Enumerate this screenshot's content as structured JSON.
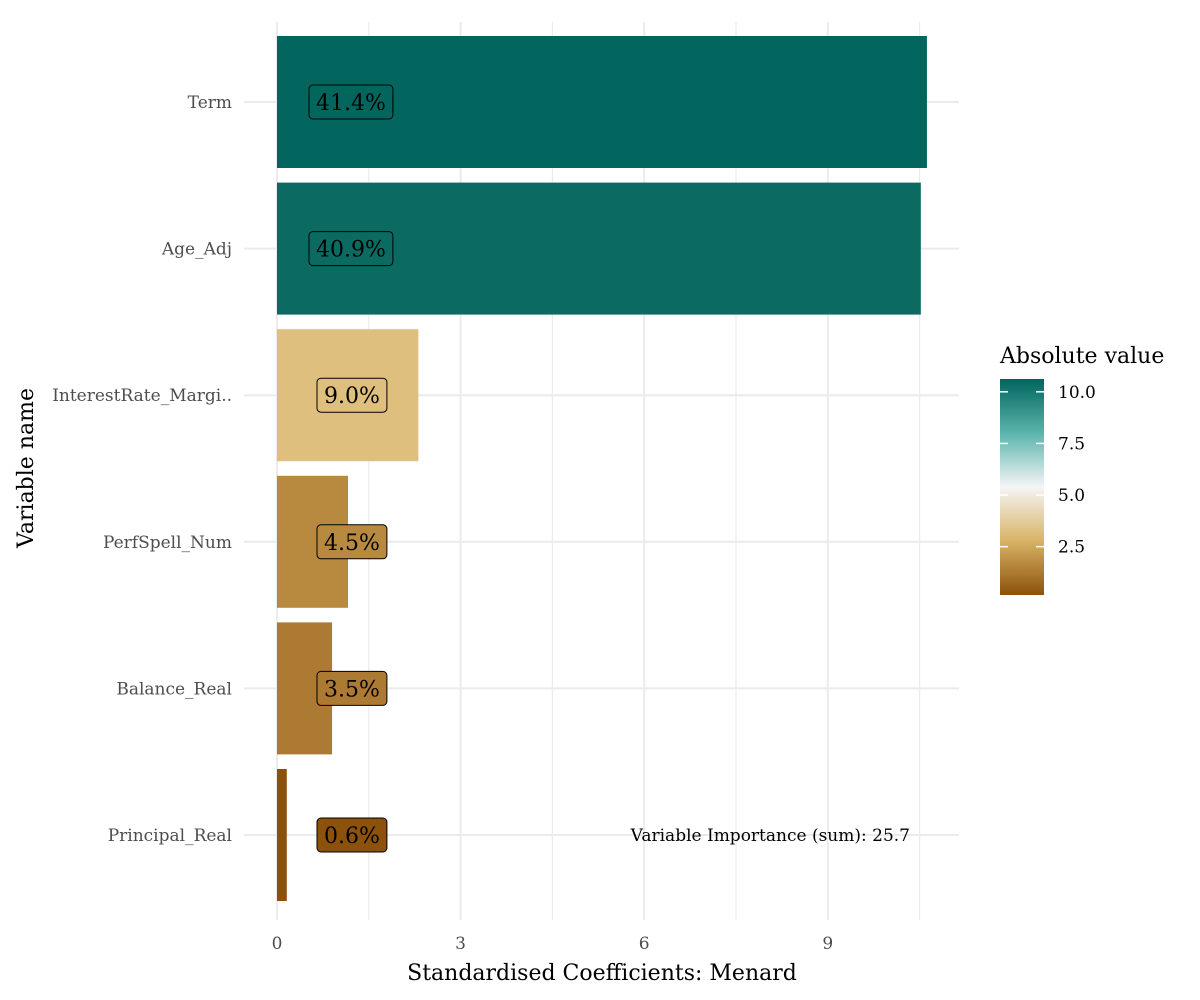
{
  "chart_data": {
    "type": "bar",
    "orientation": "horizontal",
    "xlabel": "Standardised Coefficients: Menard",
    "ylabel": "Variable name",
    "xlim": [
      0,
      11.1
    ],
    "x_ticks": [
      0,
      3,
      6,
      9
    ],
    "x_tick_labels": [
      "0",
      "3",
      "6",
      "9"
    ],
    "grid": true,
    "categories": [
      "Term",
      "Age_Adj",
      "InterestRate_Margi..",
      "PerfSpell_Num",
      "Balance_Real",
      "Principal_Real"
    ],
    "values": [
      10.62,
      10.52,
      2.31,
      1.16,
      0.9,
      0.16
    ],
    "labels": [
      "41.4%",
      "40.9%",
      "9.0%",
      "4.5%",
      "3.5%",
      "0.6%"
    ],
    "colors": [
      "#03665e",
      "#0b6b63",
      "#dfbf7d",
      "#b88a40",
      "#ad7a33",
      "#8c510a"
    ],
    "annotation": "Variable Importance (sum): 25.7",
    "legend": {
      "title": "Absolute value",
      "position": "right",
      "ticks": [
        2.5,
        5.0,
        7.5,
        10.0
      ],
      "tick_labels": [
        "2.5",
        "5.0",
        "7.5",
        "10.0"
      ],
      "range": [
        0.16,
        10.62
      ],
      "gradient_colors": [
        "#8c510a",
        "#d8b365",
        "#f5f5f5",
        "#5ab4ac",
        "#01665e"
      ]
    }
  }
}
